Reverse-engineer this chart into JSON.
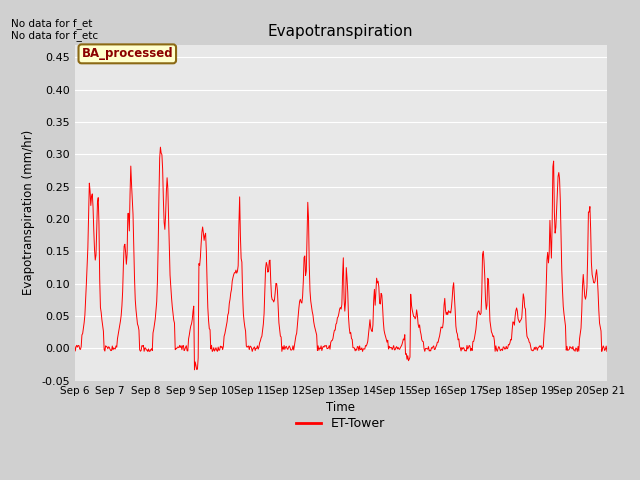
{
  "title": "Evapotranspiration",
  "ylabel": "Evapotranspiration (mm/hr)",
  "xlabel": "Time",
  "text_upper_left": "No data for f_et\nNo data for f_etc",
  "legend_label": "ET-Tower",
  "legend_box_label": "BA_processed",
  "ylim": [
    -0.05,
    0.47
  ],
  "fig_bg_color": "#d0d0d0",
  "plot_bg_color": "#e8e8e8",
  "line_color": "#ff0000",
  "line_width": 0.7,
  "x_tick_labels": [
    "Sep 6",
    "Sep 7",
    "Sep 8",
    "Sep 9",
    "Sep 10",
    "Sep 11",
    "Sep 12",
    "Sep 13",
    "Sep 14",
    "Sep 15",
    "Sep 16",
    "Sep 17",
    "Sep 18",
    "Sep 19",
    "Sep 20",
    "Sep 21"
  ],
  "ytick_labels": [
    "-0.05",
    "0.00",
    "0.05",
    "0.10",
    "0.15",
    "0.20",
    "0.25",
    "0.30",
    "0.35",
    "0.40",
    "0.45"
  ],
  "yticks": [
    -0.05,
    0.0,
    0.05,
    0.1,
    0.15,
    0.2,
    0.25,
    0.3,
    0.35,
    0.4,
    0.45
  ],
  "figsize": [
    6.4,
    4.8
  ],
  "dpi": 100
}
